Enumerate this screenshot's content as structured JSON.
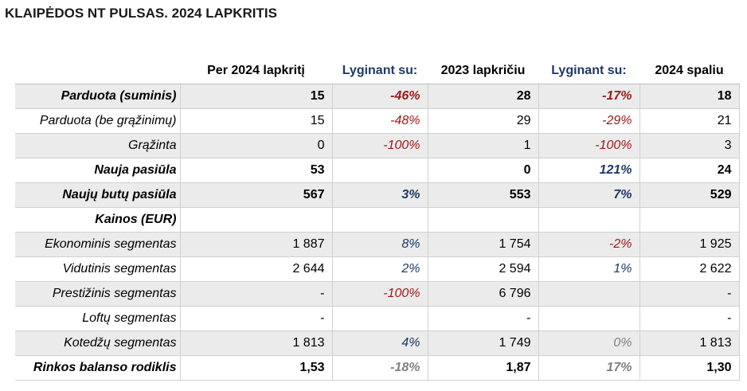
{
  "title": "KLAIPĖDOS NT PULSAS. 2024 LAPKRITIS",
  "headers": {
    "col1": "Per 2024 lapkritį",
    "col2": "Lyginant su:",
    "col3": "2023 lapkričiu",
    "col4": "Lyginant su:",
    "col5": "2024 spaliu"
  },
  "colors": {
    "negative": "#9b1a1a",
    "positive": "#1f3864",
    "neutral": "#808080",
    "shaded_row": "#ebebeb"
  },
  "rows": [
    {
      "label": "Parduota (suminis)",
      "v1": "15",
      "p1": "-46%",
      "v2": "28",
      "p2": "-17%",
      "v3": "18"
    },
    {
      "label": "Parduota (be grąžinimų)",
      "v1": "15",
      "p1": "-48%",
      "v2": "29",
      "p2": "-29%",
      "v3": "21"
    },
    {
      "label": "Grąžinta",
      "v1": "0",
      "p1": "-100%",
      "v2": "1",
      "p2": "-100%",
      "v3": "3"
    },
    {
      "label": "Nauja pasiūla",
      "v1": "53",
      "p1": "",
      "v2": "0",
      "p2": "121%",
      "v3": "24"
    },
    {
      "label": "Naujų butų pasiūla",
      "v1": "567",
      "p1": "3%",
      "v2": "553",
      "p2": "7%",
      "v3": "529"
    },
    {
      "label": "Kainos (EUR)",
      "v1": "",
      "p1": "",
      "v2": "",
      "p2": "",
      "v3": ""
    },
    {
      "label": "Ekonominis segmentas",
      "v1": "1 887",
      "p1": "8%",
      "v2": "1 754",
      "p2": "-2%",
      "v3": "1 925"
    },
    {
      "label": "Vidutinis segmentas",
      "v1": "2 644",
      "p1": "2%",
      "v2": "2 594",
      "p2": "1%",
      "v3": "2 622"
    },
    {
      "label": "Prestižinis segmentas",
      "v1": "-",
      "p1": "-100%",
      "v2": "6 796",
      "p2": "",
      "v3": "-"
    },
    {
      "label": "Loftų segmentas",
      "v1": "-",
      "p1": "",
      "v2": "-",
      "p2": "",
      "v3": "-"
    },
    {
      "label": "Kotedžų segmentas",
      "v1": "1 813",
      "p1": "4%",
      "v2": "1 749",
      "p2": "0%",
      "v3": "1 813"
    },
    {
      "label": "Rinkos balanso rodiklis",
      "v1": "1,53",
      "p1": "-18%",
      "v2": "1,87",
      "p2": "17%",
      "v3": "1,30"
    }
  ]
}
